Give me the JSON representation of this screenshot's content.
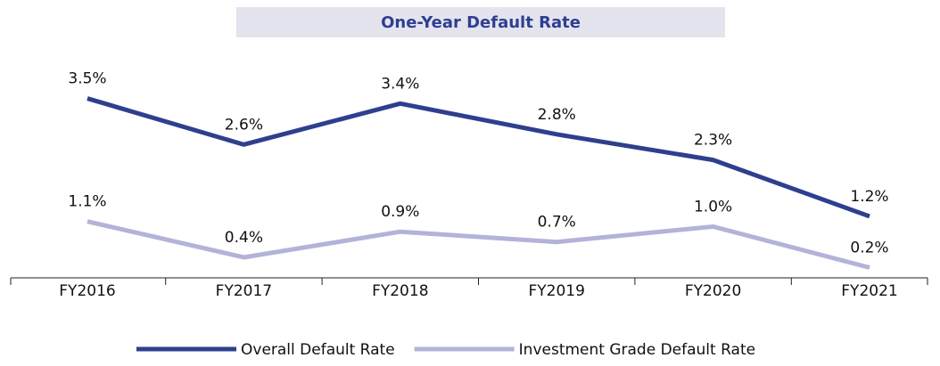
{
  "chart_data": {
    "type": "line",
    "title": "One-Year Default Rate",
    "categories": [
      "FY2016",
      "FY2017",
      "FY2018",
      "FY2019",
      "FY2020",
      "FY2021"
    ],
    "series": [
      {
        "name": "Overall Default Rate",
        "color": "#2e3f8f",
        "values": [
          3.5,
          2.6,
          3.4,
          2.8,
          2.3,
          1.2
        ],
        "value_labels": [
          "3.5%",
          "2.6%",
          "3.4%",
          "2.8%",
          "2.3%",
          "1.2%"
        ]
      },
      {
        "name": "Investment Grade Default Rate",
        "color": "#b3b3d9",
        "values": [
          1.1,
          0.4,
          0.9,
          0.7,
          1.0,
          0.2
        ],
        "value_labels": [
          "1.1%",
          "0.4%",
          "0.9%",
          "0.7%",
          "1.0%",
          "0.2%"
        ]
      }
    ],
    "ylim": [
      0,
      4.5
    ],
    "legend": "bottom"
  }
}
